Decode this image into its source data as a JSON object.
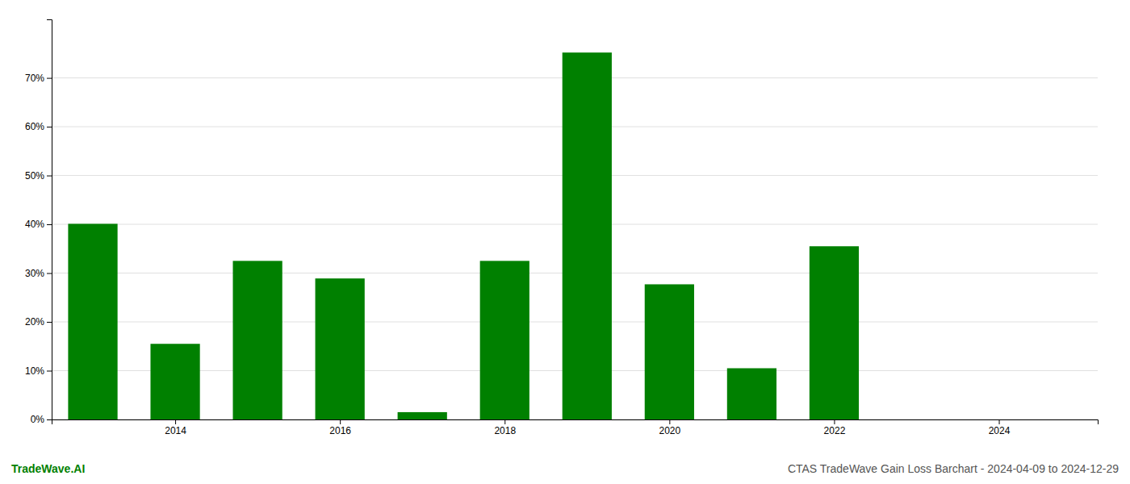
{
  "chart_data": {
    "type": "bar",
    "title": "CTAS TradeWave Gain Loss Barchart - 2024-04-09 to 2024-12-29",
    "annotations": [
      "TradeWave.AI"
    ],
    "x": [
      2013,
      2014,
      2015,
      2016,
      2017,
      2018,
      2019,
      2020,
      2021,
      2022,
      2023
    ],
    "values": [
      0.401,
      0.155,
      0.325,
      0.289,
      0.015,
      0.325,
      0.752,
      0.277,
      0.105,
      0.355,
      0.0
    ],
    "color": "#008000",
    "xlim": [
      2012.5,
      2025.2
    ],
    "xticks": [
      2014,
      2016,
      2018,
      2020,
      2022,
      2024
    ],
    "ylim": [
      0,
      0.82
    ],
    "yticks": [
      {
        "value": 0.0,
        "label": "0%"
      },
      {
        "value": 0.1,
        "label": "10%"
      },
      {
        "value": 0.2,
        "label": "20%"
      },
      {
        "value": 0.3,
        "label": "30%"
      },
      {
        "value": 0.4,
        "label": "40%"
      },
      {
        "value": 0.5,
        "label": "50%"
      },
      {
        "value": 0.6,
        "label": "60%"
      },
      {
        "value": 0.7,
        "label": "70%"
      }
    ],
    "grid": true
  }
}
